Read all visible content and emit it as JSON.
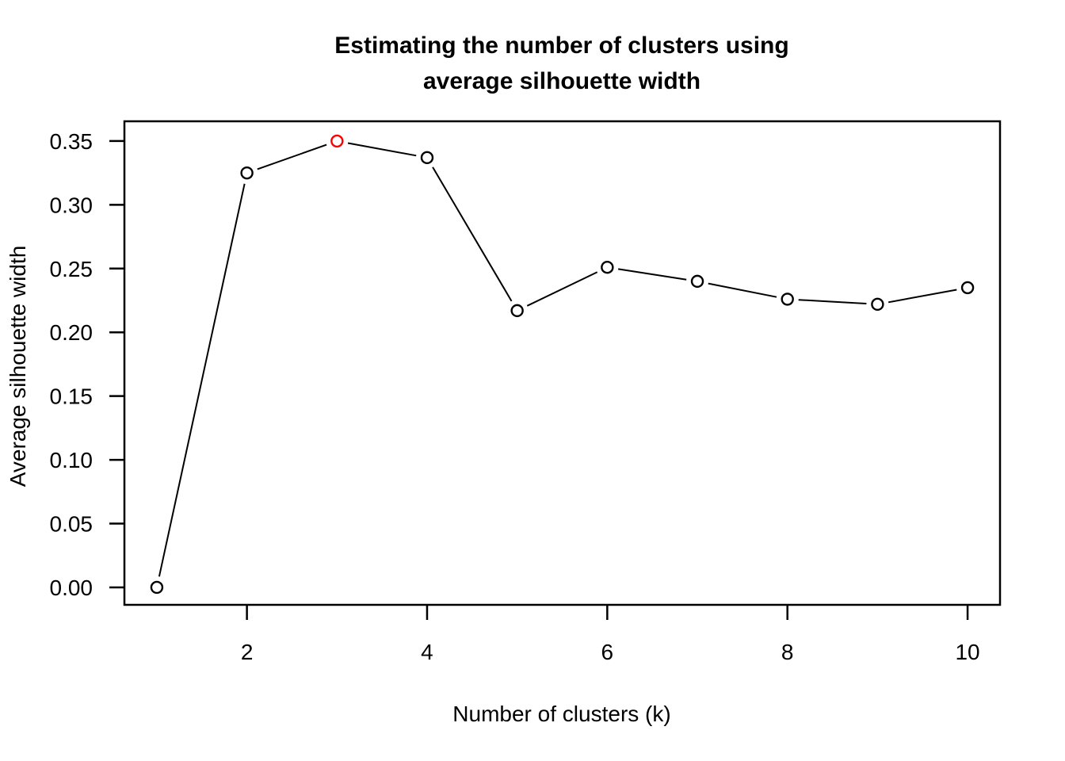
{
  "figure": {
    "title_line1": "Estimating the number of clusters using",
    "title_line2": "average silhouette width",
    "xlabel": "Number of clusters (k)",
    "ylabel": "Average silhouette width"
  },
  "chart_data": {
    "type": "line",
    "title": "Estimating the number of clusters using average silhouette width",
    "xlabel": "Number of clusters (k)",
    "ylabel": "Average silhouette width",
    "x": [
      1,
      2,
      3,
      4,
      5,
      6,
      7,
      8,
      9,
      10
    ],
    "y": [
      0.0,
      0.325,
      0.35,
      0.337,
      0.217,
      0.251,
      0.24,
      0.226,
      0.222,
      0.235
    ],
    "marker": "open-circle",
    "line_color": "#000000",
    "marker_fill": "#FFFFFF",
    "highlight": {
      "x": 3,
      "color": "#FF0000"
    },
    "x_ticks": [
      2,
      4,
      6,
      8,
      10
    ],
    "y_ticks": [
      0.0,
      0.05,
      0.1,
      0.15,
      0.2,
      0.25,
      0.3,
      0.35
    ],
    "y_tick_labels": [
      "0.00",
      "0.05",
      "0.10",
      "0.15",
      "0.20",
      "0.25",
      "0.30",
      "0.35"
    ],
    "xlim": [
      0.64,
      10.36
    ],
    "ylim": [
      -0.0137,
      0.3655
    ],
    "grid": false,
    "legend": "none",
    "background": "#FFFFFF",
    "frame": "box"
  }
}
